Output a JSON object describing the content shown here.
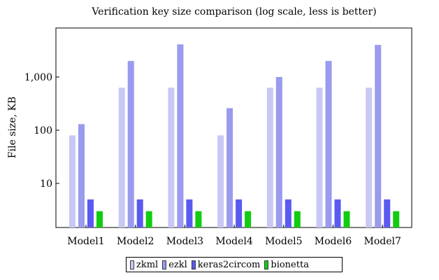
{
  "chart_data": {
    "type": "bar",
    "title": "Verification key size comparison (log scale, less is better)",
    "xlabel": "",
    "ylabel": "File size, KB",
    "yscale": "log",
    "ylim": [
      1.5,
      8000
    ],
    "yticks": [
      10,
      100,
      1000
    ],
    "ytick_labels": [
      "10",
      "100",
      "1,000"
    ],
    "grid": false,
    "legend_position": "bottom",
    "categories": [
      "Model1",
      "Model2",
      "Model3",
      "Model4",
      "Model5",
      "Model6",
      "Model7"
    ],
    "series": [
      {
        "name": "zkml",
        "color": "#c8c8f4",
        "values": [
          80,
          630,
          630,
          80,
          630,
          630,
          630
        ]
      },
      {
        "name": "ezkl",
        "color": "#9a9aee",
        "values": [
          130,
          2000,
          4100,
          260,
          1000,
          2000,
          4000
        ]
      },
      {
        "name": "keras2circom",
        "color": "#5a5af0",
        "values": [
          5,
          5,
          5,
          5,
          5,
          5,
          5
        ]
      },
      {
        "name": "bionetta",
        "color": "#11cc11",
        "values": [
          3,
          3,
          3,
          3,
          3,
          3,
          3
        ]
      }
    ]
  }
}
